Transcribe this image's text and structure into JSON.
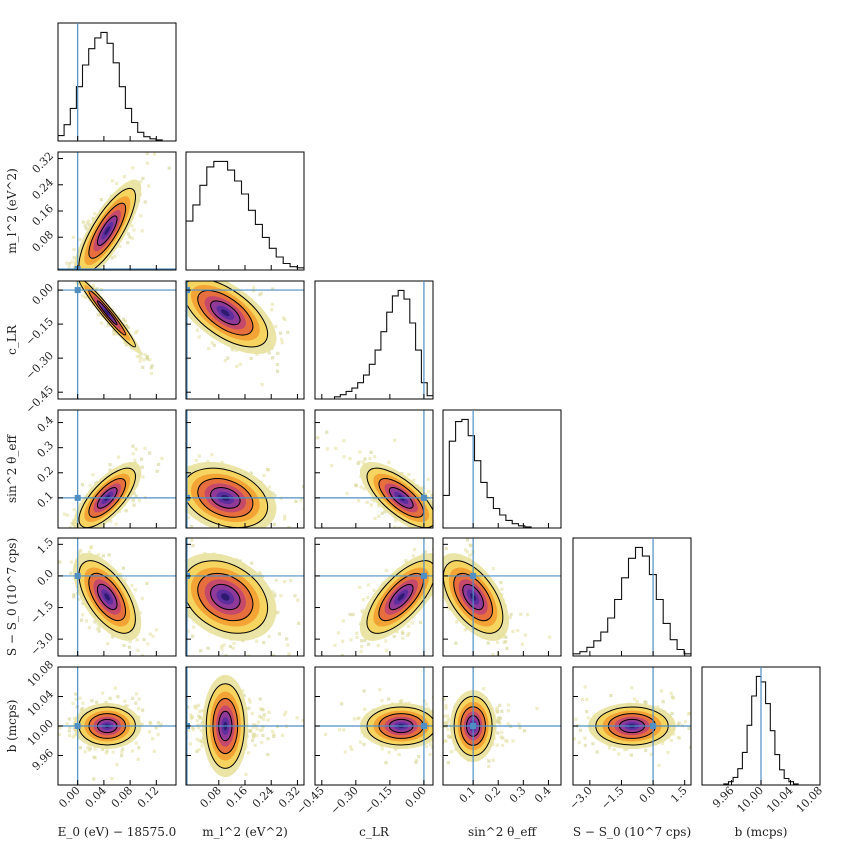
{
  "chart_data": {
    "type": "corner",
    "params": [
      {
        "key": "E0",
        "label": "E_0 (eV) − 18575.0",
        "range": [
          -0.03,
          0.15
        ],
        "ticks": [
          0.0,
          0.04,
          0.08,
          0.12
        ],
        "tick_labels": [
          "0.00",
          "0.04",
          "0.08",
          "0.12"
        ],
        "truth": 0.0
      },
      {
        "key": "m2",
        "label": "m_l^2 (eV^2)",
        "range": [
          -0.02,
          0.34
        ],
        "ticks": [
          0.08,
          0.16,
          0.24,
          0.32
        ],
        "tick_labels": [
          "0.08",
          "0.16",
          "0.24",
          "0.32"
        ],
        "truth": -0.02
      },
      {
        "key": "cLR",
        "label": "c_LR",
        "range": [
          -0.48,
          0.04
        ],
        "ticks": [
          -0.45,
          -0.3,
          -0.15,
          0.0
        ],
        "tick_labels": [
          "−0.45",
          "−0.30",
          "−0.15",
          "0.00"
        ],
        "truth": 0.0
      },
      {
        "key": "sin2",
        "label": "sin^2 θ_eff",
        "range": [
          -0.02,
          0.45
        ],
        "ticks": [
          0.1,
          0.2,
          0.3,
          0.4
        ],
        "tick_labels": [
          "0.1",
          "0.2",
          "0.3",
          "0.4"
        ],
        "truth": 0.1
      },
      {
        "key": "S",
        "label": "S − S_0 (10^7 cps)",
        "range": [
          -3.8,
          1.8
        ],
        "ticks": [
          -3.0,
          -1.5,
          0.0,
          1.5
        ],
        "tick_labels": [
          "−3.0",
          "−1.5",
          "0.0",
          "1.5"
        ],
        "truth": 0.0
      },
      {
        "key": "b",
        "label": "b (mcps)",
        "range": [
          9.92,
          10.08
        ],
        "ticks": [
          9.96,
          10.0,
          10.04,
          10.08
        ],
        "tick_labels": [
          "9.96",
          "10.00",
          "10.04",
          "10.08"
        ],
        "truth": 10.0
      }
    ],
    "diagonal_histograms": [
      [
        0.05,
        0.15,
        0.3,
        0.5,
        0.7,
        0.85,
        0.95,
        1.0,
        0.9,
        0.72,
        0.5,
        0.3,
        0.17,
        0.08,
        0.04,
        0.02,
        0.01
      ],
      [
        0.45,
        0.6,
        0.78,
        0.95,
        1.0,
        1.0,
        0.92,
        0.82,
        0.7,
        0.55,
        0.42,
        0.3,
        0.2,
        0.12,
        0.06,
        0.03,
        0.02
      ],
      [
        0.02,
        0.04,
        0.07,
        0.1,
        0.15,
        0.22,
        0.32,
        0.45,
        0.62,
        0.8,
        0.95,
        1.0,
        0.92,
        0.7,
        0.45,
        0.15,
        0.03
      ],
      [
        0.3,
        0.8,
        0.98,
        1.0,
        0.85,
        0.62,
        0.42,
        0.28,
        0.18,
        0.12,
        0.07,
        0.04,
        0.02,
        0.01
      ],
      [
        0.02,
        0.04,
        0.08,
        0.14,
        0.22,
        0.35,
        0.52,
        0.72,
        0.9,
        1.0,
        0.92,
        0.75,
        0.52,
        0.3,
        0.15,
        0.06,
        0.02
      ],
      [
        0.01,
        0.03,
        0.07,
        0.15,
        0.3,
        0.55,
        0.82,
        1.0,
        0.95,
        0.75,
        0.5,
        0.28,
        0.14,
        0.06,
        0.03,
        0.01
      ]
    ],
    "correlations": {
      "E0|m2": 0.8,
      "E0|cLR": -0.97,
      "m2|cLR": -0.62,
      "E0|sin2": 0.72,
      "m2|sin2": -0.3,
      "cLR|sin2": -0.72,
      "E0|S": -0.6,
      "m2|S": -0.3,
      "cLR|S": 0.7,
      "sin2|S": -0.55,
      "E0|b": 0.0,
      "m2|b": 0.0,
      "cLR|b": 0.0,
      "sin2|b": 0.0,
      "S|b": 0.0
    },
    "posterior_mean": {
      "E0": 0.045,
      "m2": 0.1,
      "cLR": -0.1,
      "sin2": 0.1,
      "S": -1.0,
      "b": 10.0
    },
    "posterior_std": {
      "E0": 0.02,
      "m2": 0.06,
      "cLR": 0.07,
      "sin2": 0.055,
      "S": 0.8,
      "b": 0.012
    },
    "truth_color": "#4f8fc4",
    "colormap": [
      "#2a1a6e",
      "#5b2e9e",
      "#8a3a9c",
      "#c2456f",
      "#e56a3e",
      "#f2a032",
      "#f5d35a",
      "#e8e2a0"
    ],
    "grid": false
  }
}
